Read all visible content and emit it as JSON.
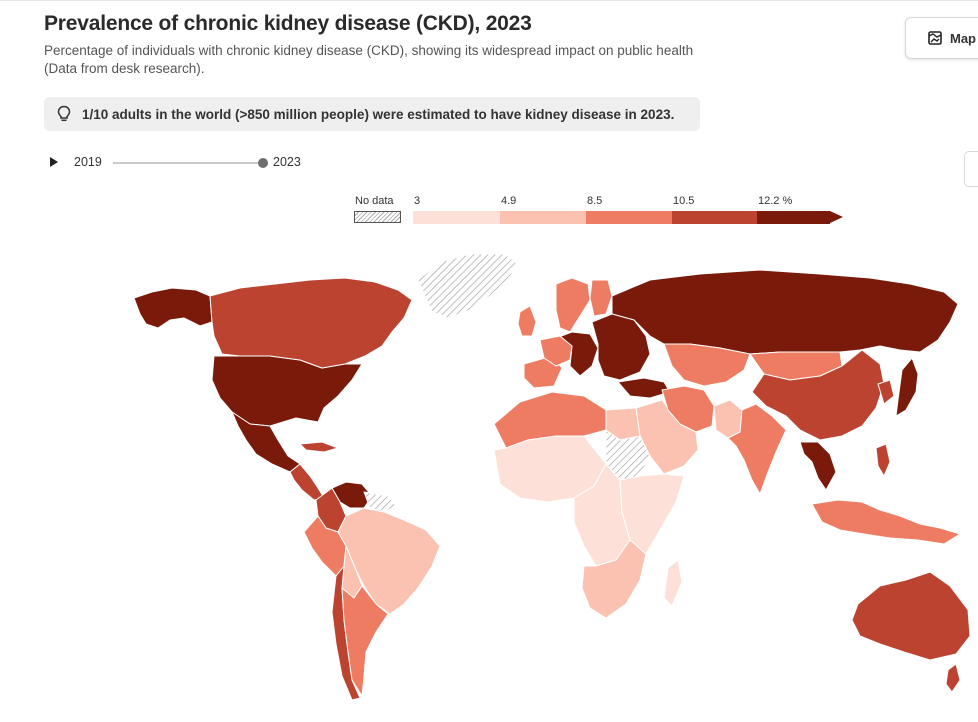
{
  "header": {
    "title": "Prevalence of chronic kidney disease (CKD), 2023",
    "subtitle_line1": "Percentage of individuals with chronic kidney disease (CKD), showing its widespread impact on public health",
    "subtitle_line2": "(Data from desk research)."
  },
  "tabs": {
    "map_label": "Map",
    "map_icon": "map-icon"
  },
  "callout": {
    "icon": "lightbulb-icon",
    "text": "1/10 adults in the world (>850 million people) were estimated to have kidney disease in 2023."
  },
  "timeline": {
    "play_icon": "play-icon",
    "start_year": "2019",
    "end_year": "2023",
    "selected_year": "2023"
  },
  "legend": {
    "no_data_label": "No data",
    "ticks": [
      "3",
      "4.9",
      "8.5",
      "10.5",
      "12.2 %"
    ],
    "colors": [
      "#fde0d8",
      "#fbc1b1",
      "#ed7c62",
      "#bd4331",
      "#7a1a0a"
    ],
    "no_data_pattern": "hatched-grey"
  },
  "map": {
    "projection": "world",
    "regions": [
      {
        "name": "Russia",
        "bin": 4
      },
      {
        "name": "United States",
        "bin": 4
      },
      {
        "name": "Mexico",
        "bin": 4
      },
      {
        "name": "Alaska",
        "bin": 4
      },
      {
        "name": "Canada",
        "bin": 3
      },
      {
        "name": "Greenland",
        "bin": -1
      },
      {
        "name": "Central America",
        "bin": 3
      },
      {
        "name": "Cuba",
        "bin": 3
      },
      {
        "name": "Venezuela",
        "bin": 4
      },
      {
        "name": "Colombia",
        "bin": 3
      },
      {
        "name": "Peru",
        "bin": 2
      },
      {
        "name": "Brazil",
        "bin": 1
      },
      {
        "name": "Bolivia",
        "bin": 1
      },
      {
        "name": "Chile",
        "bin": 3
      },
      {
        "name": "Argentina",
        "bin": 2
      },
      {
        "name": "Guianas",
        "bin": -1
      },
      {
        "name": "Western Europe",
        "bin": 4
      },
      {
        "name": "Iberia",
        "bin": 2
      },
      {
        "name": "France",
        "bin": 2
      },
      {
        "name": "United Kingdom",
        "bin": 2
      },
      {
        "name": "Scandinavia",
        "bin": 2
      },
      {
        "name": "Finland",
        "bin": 2
      },
      {
        "name": "Eastern Europe",
        "bin": 4
      },
      {
        "name": "Turkey",
        "bin": 4
      },
      {
        "name": "North Africa",
        "bin": 2
      },
      {
        "name": "Egypt",
        "bin": 1
      },
      {
        "name": "West Africa",
        "bin": 0
      },
      {
        "name": "Central Africa",
        "bin": 0
      },
      {
        "name": "East Africa",
        "bin": 0
      },
      {
        "name": "Southern Africa",
        "bin": 1
      },
      {
        "name": "Madagascar",
        "bin": 0
      },
      {
        "name": "Sudan",
        "bin": -1
      },
      {
        "name": "Arabian Peninsula",
        "bin": 1
      },
      {
        "name": "Iran",
        "bin": 2
      },
      {
        "name": "Central Asia",
        "bin": 2
      },
      {
        "name": "Mongolia",
        "bin": 2
      },
      {
        "name": "China",
        "bin": 3
      },
      {
        "name": "India",
        "bin": 2
      },
      {
        "name": "Pakistan",
        "bin": 1
      },
      {
        "name": "Southeast Asia",
        "bin": 4
      },
      {
        "name": "Indonesia",
        "bin": 2
      },
      {
        "name": "Philippines",
        "bin": 3
      },
      {
        "name": "Japan",
        "bin": 4
      },
      {
        "name": "Korea",
        "bin": 3
      },
      {
        "name": "Australia",
        "bin": 3
      },
      {
        "name": "New Zealand",
        "bin": 3
      }
    ]
  }
}
